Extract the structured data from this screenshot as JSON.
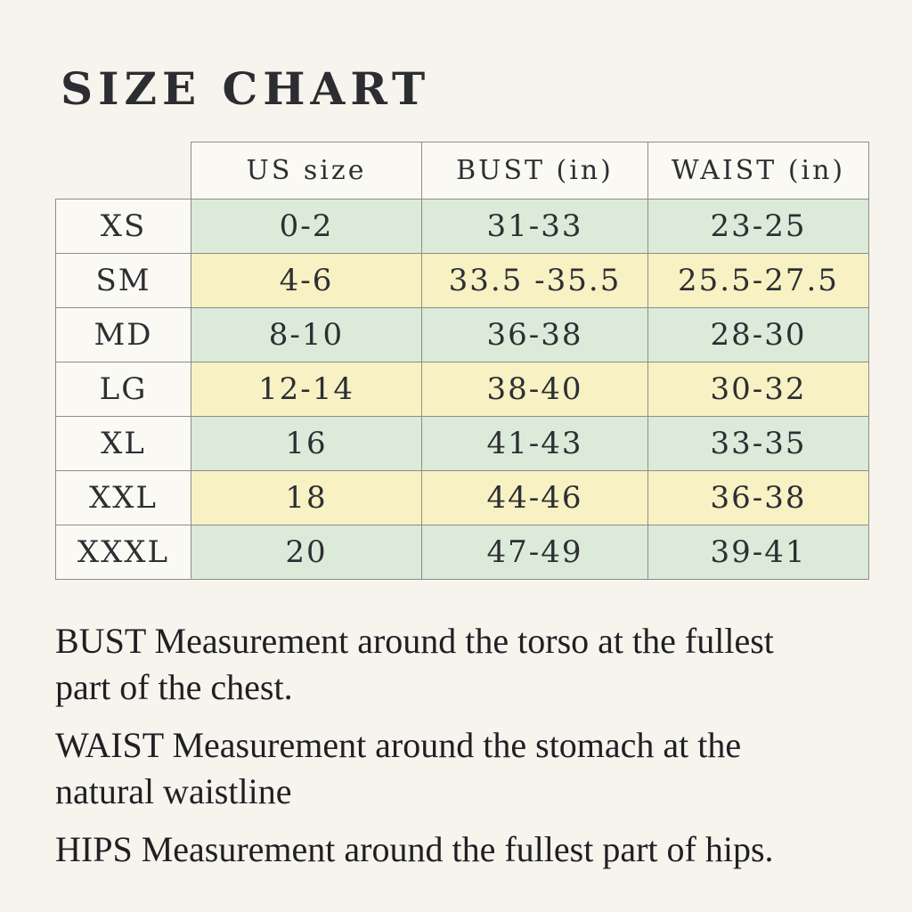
{
  "page": {
    "title": "SIZE CHART"
  },
  "table": {
    "headers": {
      "us_size": "US size",
      "bust": "BUST (in)",
      "waist": "WAIST (in)"
    },
    "rows": [
      {
        "size": "XS",
        "us_size": "0-2",
        "bust": "31-33",
        "waist": "23-25",
        "tone": "green"
      },
      {
        "size": "SM",
        "us_size": "4-6",
        "bust": "33.5 -35.5",
        "waist": "25.5-27.5",
        "tone": "yellow"
      },
      {
        "size": "MD",
        "us_size": "8-10",
        "bust": "36-38",
        "waist": "28-30",
        "tone": "green"
      },
      {
        "size": "LG",
        "us_size": "12-14",
        "bust": "38-40",
        "waist": "30-32",
        "tone": "yellow"
      },
      {
        "size": "XL",
        "us_size": "16",
        "bust": "41-43",
        "waist": "33-35",
        "tone": "green"
      },
      {
        "size": "XXL",
        "us_size": "18",
        "bust": "44-46",
        "waist": "36-38",
        "tone": "yellow"
      },
      {
        "size": "XXXL",
        "us_size": "20",
        "bust": "47-49",
        "waist": "39-41",
        "tone": "green"
      }
    ]
  },
  "notes": [
    {
      "lines": [
        "BUST Measurement around the torso at the fullest",
        "part of the chest."
      ]
    },
    {
      "lines": [
        "WAIST Measurement around the stomach at the",
        "natural waistline"
      ]
    },
    {
      "lines": [
        "HIPS Measurement around the fullest part of hips."
      ]
    }
  ],
  "colors": {
    "page_background": "#f7f4ee",
    "cell_white": "#fbf9f4",
    "row_green": "#dcead9",
    "row_yellow": "#f8f1c4",
    "border_gray": "#8d8d86",
    "text_dark": "#26292c"
  }
}
